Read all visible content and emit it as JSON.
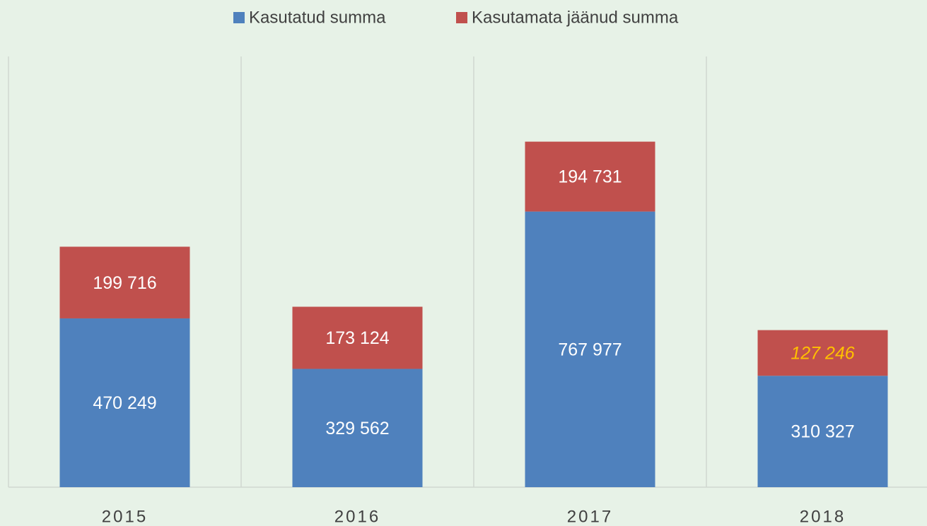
{
  "chart_data": {
    "type": "stacked_bar",
    "categories": [
      "2015",
      "2016",
      "2017",
      "2018"
    ],
    "series": [
      {
        "name": "Kasutatud summa",
        "color": "#4f81bd",
        "values": [
          470249,
          329562,
          767977,
          310327
        ],
        "value_labels": [
          "470 249",
          "329 562",
          "767 977",
          "310 327"
        ],
        "value_label_colors": [
          "#ffffff",
          "#ffffff",
          "#ffffff",
          "#ffffff"
        ]
      },
      {
        "name": "Kasutamata jäänud summa",
        "color": "#c0504d",
        "values": [
          199716,
          173124,
          194731,
          127246
        ],
        "value_labels": [
          "199 716",
          "173 124",
          "194 731",
          "127 246"
        ],
        "value_label_colors": [
          "#ffffff",
          "#ffffff",
          "#ffffff",
          "#ffc000"
        ]
      }
    ],
    "ylim": [
      0,
      1200000
    ],
    "legend": "top"
  }
}
